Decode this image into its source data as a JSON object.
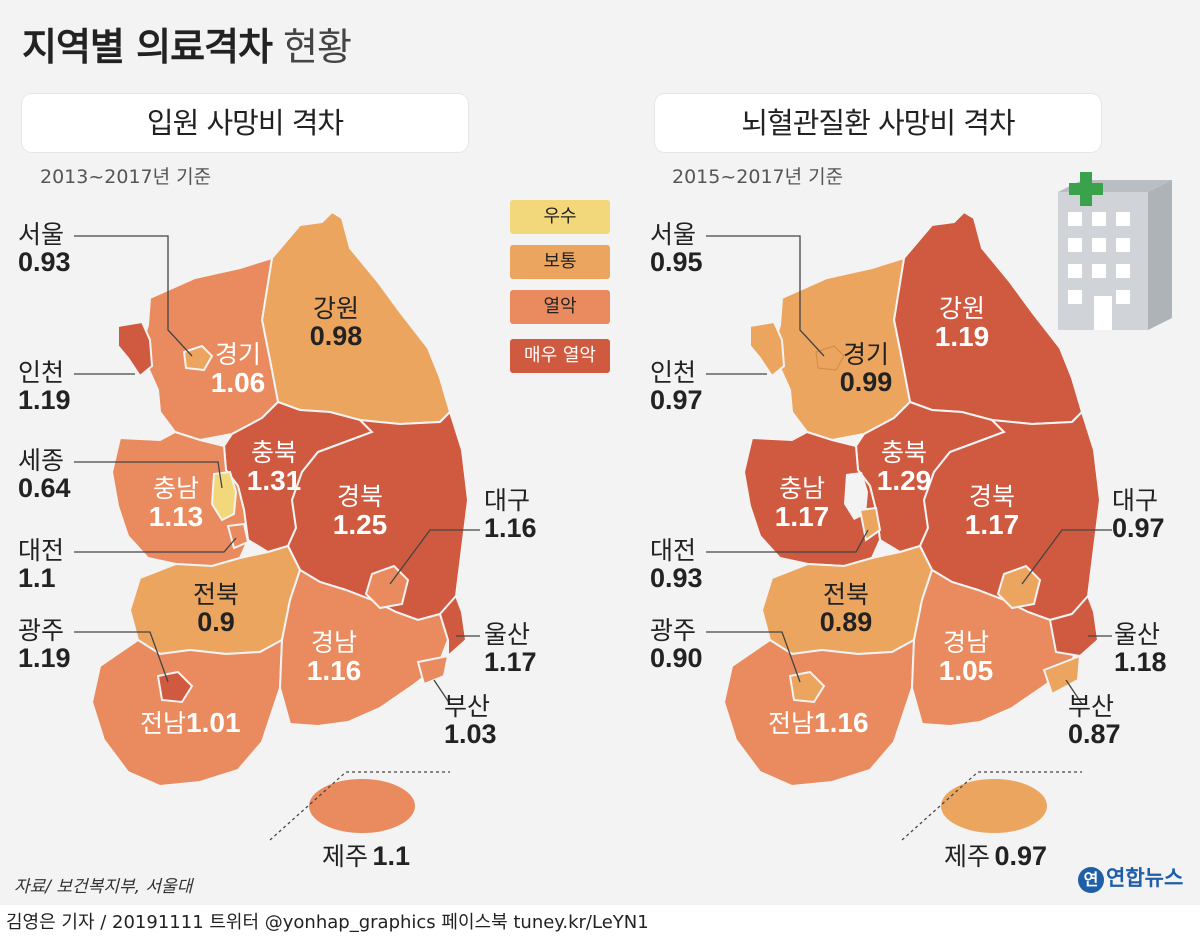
{
  "title": {
    "bold": "지역별 의료격차",
    "light": "현황"
  },
  "colors": {
    "excellent": "#f2d87a",
    "normal": "#eba55f",
    "weak": "#e98b5e",
    "very_weak": "#cf5a40",
    "background": "#f3f3f3",
    "outside_label": "#222222",
    "inside_label": "#ffffff",
    "hospital_icon": "#c9cdd1",
    "hospital_cross": "#3aa24a"
  },
  "legend": [
    {
      "label": "우수",
      "color": "#f2d87a"
    },
    {
      "label": "보통",
      "color": "#eba55f"
    },
    {
      "label": "열악",
      "color": "#e98b5e"
    },
    {
      "label": "매우 열악",
      "color": "#cf5a40"
    }
  ],
  "left_panel": {
    "title": "입원 사망비 격차",
    "period": "2013~2017년 기준",
    "regions": {
      "seoul": {
        "name": "서울",
        "value": "0.93",
        "level": "normal"
      },
      "incheon": {
        "name": "인천",
        "value": "1.19",
        "level": "very_weak"
      },
      "sejong": {
        "name": "세종",
        "value": "0.64",
        "level": "excellent"
      },
      "daejeon": {
        "name": "대전",
        "value": "1.1",
        "level": "weak"
      },
      "gwangju": {
        "name": "광주",
        "value": "1.19",
        "level": "very_weak"
      },
      "gyeonggi": {
        "name": "경기",
        "value": "1.06",
        "level": "weak"
      },
      "gangwon": {
        "name": "강원",
        "value": "0.98",
        "level": "normal"
      },
      "chungbuk": {
        "name": "충북",
        "value": "1.31",
        "level": "very_weak"
      },
      "chungnam": {
        "name": "충남",
        "value": "1.13",
        "level": "weak"
      },
      "gyeongbuk": {
        "name": "경북",
        "value": "1.25",
        "level": "very_weak"
      },
      "jeonbuk": {
        "name": "전북",
        "value": "0.9",
        "level": "normal"
      },
      "jeonnam": {
        "name": "전남",
        "value": "1.01",
        "level": "weak"
      },
      "gyeongnam": {
        "name": "경남",
        "value": "1.16",
        "level": "weak"
      },
      "daegu": {
        "name": "대구",
        "value": "1.16",
        "level": "weak"
      },
      "ulsan": {
        "name": "울산",
        "value": "1.17",
        "level": "very_weak"
      },
      "busan": {
        "name": "부산",
        "value": "1.03",
        "level": "weak"
      },
      "jeju": {
        "name": "제주",
        "value": "1.1",
        "level": "weak"
      }
    }
  },
  "right_panel": {
    "title": "뇌혈관질환 사망비 격차",
    "period": "2015~2017년 기준",
    "regions": {
      "seoul": {
        "name": "서울",
        "value": "0.95",
        "level": "normal"
      },
      "incheon": {
        "name": "인천",
        "value": "0.97",
        "level": "normal"
      },
      "daejeon": {
        "name": "대전",
        "value": "0.93",
        "level": "normal"
      },
      "gwangju": {
        "name": "광주",
        "value": "0.90",
        "level": "normal"
      },
      "gyeonggi": {
        "name": "경기",
        "value": "0.99",
        "level": "normal"
      },
      "gangwon": {
        "name": "강원",
        "value": "1.19",
        "level": "very_weak"
      },
      "chungbuk": {
        "name": "충북",
        "value": "1.29",
        "level": "very_weak"
      },
      "chungnam": {
        "name": "충남",
        "value": "1.17",
        "level": "very_weak"
      },
      "gyeongbuk": {
        "name": "경북",
        "value": "1.17",
        "level": "very_weak"
      },
      "jeonbuk": {
        "name": "전북",
        "value": "0.89",
        "level": "normal"
      },
      "jeonnam": {
        "name": "전남",
        "value": "1.16",
        "level": "weak"
      },
      "gyeongnam": {
        "name": "경남",
        "value": "1.05",
        "level": "weak"
      },
      "daegu": {
        "name": "대구",
        "value": "0.97",
        "level": "normal"
      },
      "ulsan": {
        "name": "울산",
        "value": "1.18",
        "level": "very_weak"
      },
      "busan": {
        "name": "부산",
        "value": "0.87",
        "level": "normal"
      },
      "jeju": {
        "name": "제주",
        "value": "0.97",
        "level": "normal"
      }
    }
  },
  "source": "자료/ 보건복지부, 서울대",
  "logo": {
    "mark": "연",
    "text": "연합뉴스"
  },
  "footer": "김영은 기자 / 20191111  트위터 @yonhap_graphics  페이스북 tuney.kr/LeYN1"
}
